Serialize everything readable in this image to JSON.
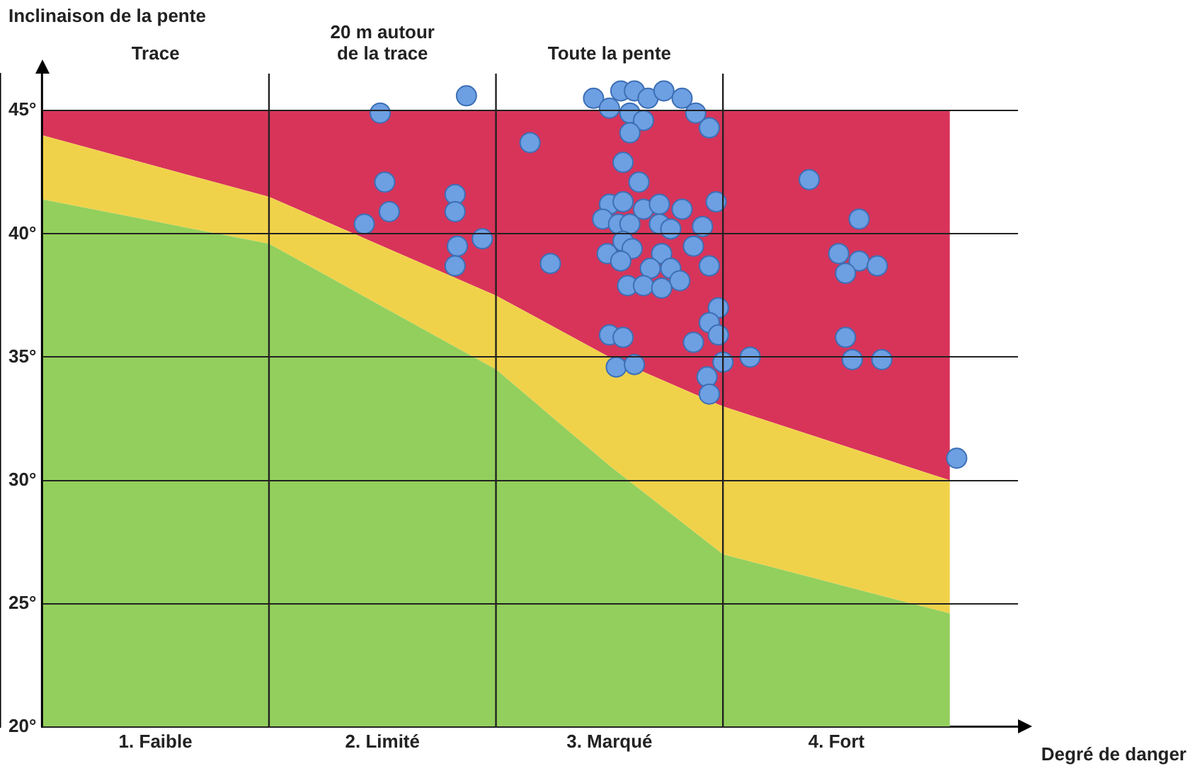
{
  "chart_data": {
    "type": "scatter",
    "ylabel": "Inclinaison de la pente",
    "xlabel": "Degré de danger",
    "xlim": [
      0.5,
      4.8
    ],
    "xticks": [
      {
        "value": 1,
        "label": "1. Faible"
      },
      {
        "value": 2,
        "label": "2. Limité"
      },
      {
        "value": 3,
        "label": "3. Marqué"
      },
      {
        "value": 4,
        "label": "4. Fort"
      }
    ],
    "ylim": [
      20,
      46.5
    ],
    "yticks": [
      {
        "value": 20,
        "label": "20°"
      },
      {
        "value": 25,
        "label": "25°"
      },
      {
        "value": 30,
        "label": "30°"
      },
      {
        "value": 35,
        "label": "35°"
      },
      {
        "value": 40,
        "label": "40°"
      },
      {
        "value": 45,
        "label": "45°"
      }
    ],
    "grid": "y",
    "legend": false,
    "ref_lines": [
      {
        "axis": "x",
        "value": 1.5,
        "color": "#222222"
      },
      {
        "axis": "x",
        "value": 2.5,
        "color": "#222222"
      },
      {
        "axis": "x",
        "value": 3.5,
        "color": "#222222"
      }
    ],
    "annotations": [
      "Trace",
      "20 m autour\nde la trace",
      "Toute la pente"
    ],
    "series": [
      {
        "type": "area",
        "color": "#93cf5c",
        "x": [
          0.5,
          1.5,
          2.5,
          3.0,
          3.5,
          4.5
        ],
        "values": [
          41.4,
          39.6,
          34.5,
          30.6,
          27,
          24.6
        ]
      },
      {
        "type": "area",
        "color": "#f0d24a",
        "x": [
          0.5,
          1.5,
          2.5,
          3.0,
          3.5,
          4.5
        ],
        "values": [
          44,
          41.5,
          37.5,
          35,
          33,
          30
        ]
      },
      {
        "type": "area",
        "color": "#d8345a",
        "x": [
          0.5,
          1.5,
          2.5,
          3.0,
          3.5,
          4.5
        ],
        "values": [
          45,
          45,
          45,
          45,
          45,
          45
        ]
      },
      {
        "color": "#6d9fe3",
        "x": [
          2.93,
          3.0,
          3.05,
          3.11,
          3.17,
          3.24,
          3.32,
          3.38,
          3.44,
          3.09,
          3.15,
          3.09,
          3.06,
          3.13,
          3.0,
          3.06,
          3.15,
          3.22,
          3.32,
          3.47,
          2.97,
          3.04,
          3.09,
          3.22,
          3.27,
          3.41,
          3.06,
          3.1,
          2.99,
          3.05,
          3.23,
          3.37,
          3.18,
          3.27,
          3.31,
          3.44,
          3.08,
          3.15,
          3.23,
          3.48,
          3.44,
          3.48,
          3.0,
          3.06,
          3.37,
          3.03,
          3.11,
          3.5,
          3.62,
          3.43,
          3.44,
          1.99,
          2.37,
          2.65,
          2.01,
          2.32,
          2.03,
          2.32,
          1.92,
          2.44,
          2.33,
          2.32,
          2.74,
          3.88,
          4.1,
          4.01,
          4.1,
          4.04,
          4.18,
          4.04,
          4.07,
          4.2,
          4.53
        ],
        "values": [
          45.5,
          45.1,
          45.8,
          45.8,
          45.5,
          45.8,
          45.5,
          44.9,
          44.3,
          44.9,
          44.6,
          44.1,
          42.9,
          42.1,
          41.2,
          41.3,
          41.0,
          41.2,
          41.0,
          41.3,
          40.6,
          40.4,
          40.4,
          40.4,
          40.2,
          40.3,
          39.7,
          39.4,
          39.2,
          38.9,
          39.2,
          39.5,
          38.6,
          38.6,
          38.1,
          38.7,
          37.9,
          37.9,
          37.8,
          37.0,
          36.4,
          35.9,
          35.9,
          35.8,
          35.6,
          34.6,
          34.7,
          34.8,
          35.0,
          34.2,
          33.5,
          44.9,
          45.6,
          43.7,
          42.1,
          41.6,
          40.9,
          40.9,
          40.4,
          39.8,
          39.5,
          38.7,
          38.8,
          42.2,
          40.6,
          39.2,
          38.9,
          38.4,
          38.7,
          35.8,
          34.9,
          34.9,
          30.9
        ]
      }
    ]
  }
}
